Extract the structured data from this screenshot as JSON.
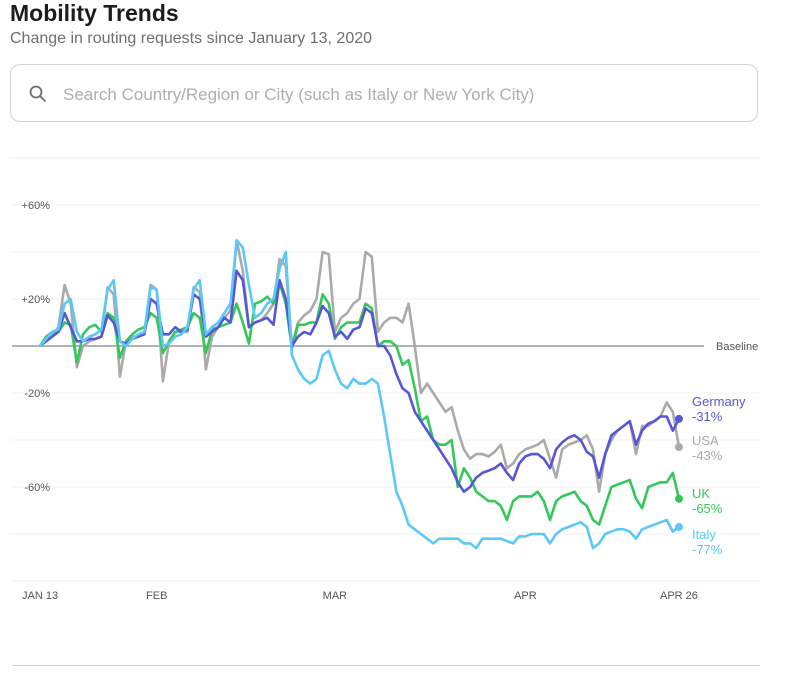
{
  "header": {
    "title": "Mobility Trends",
    "subtitle": "Change in routing requests since January 13, 2020"
  },
  "search": {
    "placeholder": "Search Country/Region or City (such as Italy or New York City)",
    "value": ""
  },
  "chart_data": {
    "type": "line",
    "title": "Mobility Trends",
    "xlabel": "",
    "ylabel": "Change in routing requests",
    "x_start": "2020-01-13",
    "x_end": "2020-04-26",
    "x_ticks": [
      {
        "label": "JAN 13",
        "day": 0
      },
      {
        "label": "FEB",
        "day": 19
      },
      {
        "label": "MAR",
        "day": 48
      },
      {
        "label": "APR",
        "day": 79
      },
      {
        "label": "APR 26",
        "day": 104
      }
    ],
    "y_ticks": [
      {
        "label": "+60%",
        "value": 60
      },
      {
        "label": "+20%",
        "value": 20
      },
      {
        "label": "-20%",
        "value": -20
      },
      {
        "label": "-60%",
        "value": -60
      }
    ],
    "ylim": [
      -100,
      80
    ],
    "grid": true,
    "baseline_label": "Baseline",
    "series": [
      {
        "name": "Germany",
        "final_label": "-31%",
        "color": "#5856d6",
        "values": [
          0,
          2,
          4,
          6,
          14,
          8,
          2,
          2,
          3,
          3,
          4,
          13,
          10,
          2,
          1,
          3,
          4,
          5,
          20,
          18,
          5,
          5,
          8,
          6,
          7,
          22,
          20,
          4,
          6,
          8,
          12,
          10,
          32,
          28,
          8,
          10,
          11,
          12,
          9,
          28,
          20,
          0,
          4,
          6,
          5,
          10,
          17,
          14,
          4,
          6,
          3,
          7,
          8,
          16,
          14,
          0,
          0,
          -4,
          -12,
          -18,
          -20,
          -28,
          -32,
          -36,
          -40,
          -44,
          -48,
          -52,
          -58,
          -62,
          -60,
          -56,
          -54,
          -53,
          -52,
          -50,
          -54,
          -57,
          -50,
          -47,
          -46,
          -46,
          -48,
          -52,
          -44,
          -41,
          -39,
          -38,
          -40,
          -45,
          -47,
          -56,
          -46,
          -38,
          -36,
          -34,
          -32,
          -42,
          -36,
          -33,
          -32,
          -30,
          -30,
          -36,
          -31
        ]
      },
      {
        "name": "USA",
        "final_label": "-43%",
        "color": "#aaaaaa",
        "values": [
          0,
          3,
          5,
          8,
          26,
          18,
          -9,
          0,
          2,
          3,
          4,
          25,
          22,
          -13,
          2,
          4,
          4,
          6,
          26,
          24,
          -15,
          2,
          6,
          6,
          6,
          25,
          23,
          -10,
          4,
          8,
          12,
          15,
          45,
          32,
          8,
          10,
          11,
          14,
          18,
          37,
          34,
          0,
          10,
          13,
          15,
          20,
          40,
          39,
          6,
          12,
          14,
          18,
          20,
          40,
          38,
          6,
          10,
          12,
          12,
          10,
          18,
          0,
          -20,
          -16,
          -20,
          -24,
          -28,
          -26,
          -36,
          -44,
          -48,
          -46,
          -46,
          -47,
          -45,
          -42,
          -52,
          -50,
          -46,
          -44,
          -43,
          -42,
          -40,
          -48,
          -56,
          -44,
          -42,
          -41,
          -40,
          -38,
          -44,
          -62,
          -46,
          -40,
          -36,
          -34,
          -32,
          -46,
          -34,
          -34,
          -32,
          -30,
          -24,
          -28,
          -43
        ]
      },
      {
        "name": "UK",
        "final_label": "-65%",
        "color": "#34c759",
        "values": [
          0,
          4,
          6,
          6,
          10,
          9,
          -7,
          5,
          8,
          9,
          6,
          14,
          12,
          -5,
          2,
          5,
          7,
          8,
          14,
          12,
          -3,
          2,
          6,
          7,
          8,
          14,
          12,
          -3,
          7,
          8,
          9,
          10,
          18,
          10,
          1,
          18,
          19,
          21,
          18,
          27,
          18,
          -1,
          9,
          9,
          10,
          10,
          22,
          18,
          3,
          8,
          10,
          10,
          10,
          18,
          16,
          0,
          2,
          2,
          0,
          -8,
          -6,
          -18,
          -32,
          -30,
          -40,
          -42,
          -42,
          -40,
          -60,
          -52,
          -56,
          -62,
          -64,
          -66,
          -66,
          -68,
          -74,
          -66,
          -64,
          -64,
          -64,
          -62,
          -66,
          -74,
          -66,
          -64,
          -63,
          -62,
          -66,
          -68,
          -74,
          -76,
          -68,
          -60,
          -59,
          -58,
          -57,
          -65,
          -69,
          -60,
          -59,
          -58,
          -58,
          -54,
          -65
        ]
      },
      {
        "name": "Italy",
        "final_label": "-77%",
        "color": "#5ac8fa",
        "values": [
          0,
          3,
          6,
          7,
          18,
          20,
          6,
          2,
          4,
          5,
          7,
          24,
          28,
          2,
          0,
          3,
          5,
          6,
          25,
          24,
          0,
          1,
          4,
          5,
          8,
          24,
          28,
          5,
          8,
          10,
          14,
          18,
          45,
          42,
          26,
          12,
          14,
          18,
          20,
          33,
          40,
          -4,
          -10,
          -14,
          -16,
          -14,
          -4,
          -2,
          -10,
          -16,
          -18,
          -14,
          -16,
          -16,
          -14,
          -16,
          -30,
          -46,
          -62,
          -68,
          -76,
          -78,
          -80,
          -82,
          -84,
          -82,
          -82,
          -82,
          -82,
          -84,
          -84,
          -86,
          -82,
          -82,
          -82,
          -82,
          -83,
          -84,
          -81,
          -81,
          -80,
          -80,
          -80,
          -84,
          -80,
          -78,
          -77,
          -76,
          -75,
          -77,
          -86,
          -84,
          -80,
          -79,
          -78,
          -78,
          -79,
          -82,
          -78,
          -77,
          -76,
          -75,
          -74,
          -79,
          -77
        ]
      }
    ]
  }
}
